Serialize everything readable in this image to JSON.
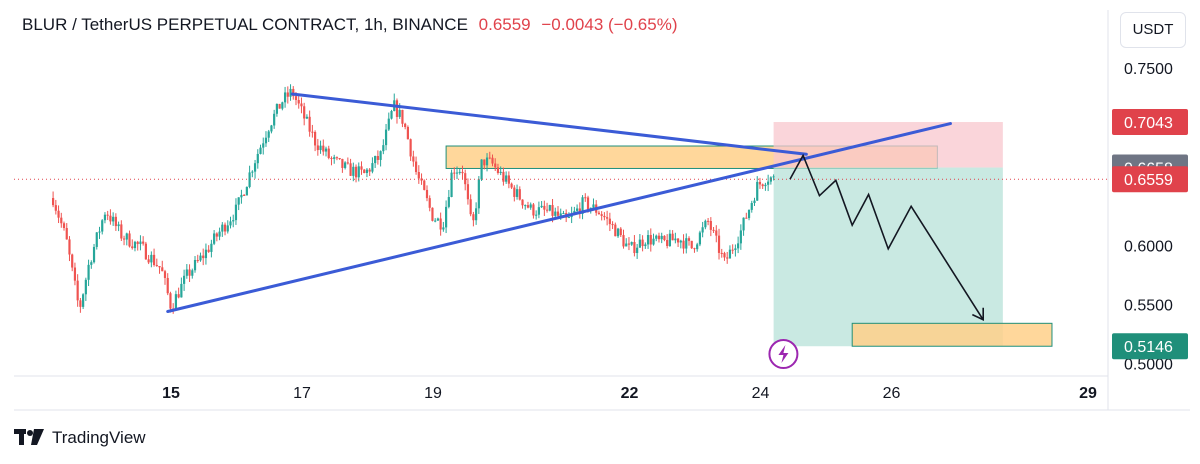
{
  "header": {
    "symbol": "BLUR / TetherUS PERPETUAL CONTRACT, 1h, BINANCE",
    "price": "0.6559",
    "change": "−0.0043 (−0.65%)"
  },
  "currency_button": "USDT",
  "footer": {
    "brand": "TradingView",
    "logo_icon": "tradingview-logo-icon"
  },
  "colors": {
    "up": "#26a69a",
    "down": "#ef5350",
    "trendline": "#3b5bd6",
    "zone_fill": "#ffd08a",
    "tp_fill": "#b7e2d8",
    "sl_fill": "#f8c7cd",
    "label_red": "#e0424b",
    "label_gray": "#6f7584",
    "label_green": "#1f8f7a"
  },
  "chart_data": {
    "type": "candlestick",
    "xaxis": {
      "ticks": [
        "15",
        "17",
        "19",
        "22",
        "24",
        "26",
        "29"
      ],
      "bold_ticks": [
        "15",
        "22",
        "29"
      ],
      "unit": "day"
    },
    "yaxis": {
      "ticks": [
        "0.7500",
        "0.6000",
        "0.5500",
        "0.5000"
      ],
      "ylim": [
        0.49,
        0.765
      ]
    },
    "price_labels": [
      {
        "value": "0.7043",
        "style": "red"
      },
      {
        "value": "0.6658",
        "style": "gray"
      },
      {
        "value": "0.6559",
        "style": "red"
      },
      {
        "value": "0.5146",
        "style": "green"
      }
    ],
    "last_price": 0.6559,
    "start_day": 13.2,
    "candle_hours": 1,
    "price_path": [
      [
        13.2,
        0.64
      ],
      [
        13.4,
        0.605
      ],
      [
        13.6,
        0.545
      ],
      [
        13.75,
        0.585
      ],
      [
        14.0,
        0.63
      ],
      [
        14.25,
        0.608
      ],
      [
        14.55,
        0.598
      ],
      [
        14.85,
        0.58
      ],
      [
        15.0,
        0.548
      ],
      [
        15.25,
        0.575
      ],
      [
        15.5,
        0.592
      ],
      [
        15.75,
        0.612
      ],
      [
        16.0,
        0.63
      ],
      [
        16.25,
        0.668
      ],
      [
        16.5,
        0.702
      ],
      [
        16.7,
        0.722
      ],
      [
        16.85,
        0.73
      ],
      [
        17.0,
        0.712
      ],
      [
        17.2,
        0.688
      ],
      [
        17.45,
        0.672
      ],
      [
        17.7,
        0.664
      ],
      [
        17.95,
        0.66
      ],
      [
        18.2,
        0.676
      ],
      [
        18.4,
        0.718
      ],
      [
        18.55,
        0.705
      ],
      [
        18.75,
        0.66
      ],
      [
        19.0,
        0.624
      ],
      [
        19.15,
        0.618
      ],
      [
        19.3,
        0.665
      ],
      [
        19.45,
        0.664
      ],
      [
        19.6,
        0.612
      ],
      [
        19.75,
        0.672
      ],
      [
        19.9,
        0.669
      ],
      [
        20.2,
        0.648
      ],
      [
        20.5,
        0.63
      ],
      [
        20.8,
        0.628
      ],
      [
        21.05,
        0.62
      ],
      [
        21.3,
        0.636
      ],
      [
        21.55,
        0.628
      ],
      [
        21.8,
        0.612
      ],
      [
        22.0,
        0.596
      ],
      [
        22.25,
        0.606
      ],
      [
        22.5,
        0.602
      ],
      [
        22.75,
        0.606
      ],
      [
        22.95,
        0.598
      ],
      [
        23.2,
        0.62
      ],
      [
        23.45,
        0.585
      ],
      [
        23.7,
        0.612
      ],
      [
        23.95,
        0.65
      ],
      [
        24.1,
        0.658
      ],
      [
        24.2,
        0.6559
      ]
    ],
    "annotations": {
      "trendlines": [
        {
          "from": [
            16.85,
            0.728
          ],
          "to": [
            24.7,
            0.677
          ]
        },
        {
          "from": [
            14.95,
            0.544
          ],
          "to": [
            26.9,
            0.703
          ]
        }
      ],
      "rectangles": [
        {
          "name": "resistance-zone",
          "x": [
            19.2,
            26.7
          ],
          "y": [
            0.665,
            0.684
          ],
          "fill": "zone_fill"
        },
        {
          "name": "stop-loss-zone",
          "x": [
            24.2,
            27.7
          ],
          "y": [
            0.6658,
            0.7043
          ],
          "fill": "sl_fill"
        },
        {
          "name": "take-profit-zone",
          "x": [
            24.2,
            27.7
          ],
          "y": [
            0.5146,
            0.6658
          ],
          "fill": "tp_fill"
        },
        {
          "name": "target-zone",
          "x": [
            25.4,
            28.45
          ],
          "y": [
            0.5146,
            0.534
          ],
          "fill": "zone_fill"
        }
      ],
      "projection_path": [
        [
          24.45,
          0.6559
        ],
        [
          24.65,
          0.676
        ],
        [
          24.9,
          0.642
        ],
        [
          25.15,
          0.655
        ],
        [
          25.4,
          0.617
        ],
        [
          25.65,
          0.643
        ],
        [
          25.95,
          0.597
        ],
        [
          26.3,
          0.633
        ],
        [
          27.4,
          0.537
        ]
      ],
      "flash_icon_at": [
        24.35,
        0.508
      ]
    }
  }
}
